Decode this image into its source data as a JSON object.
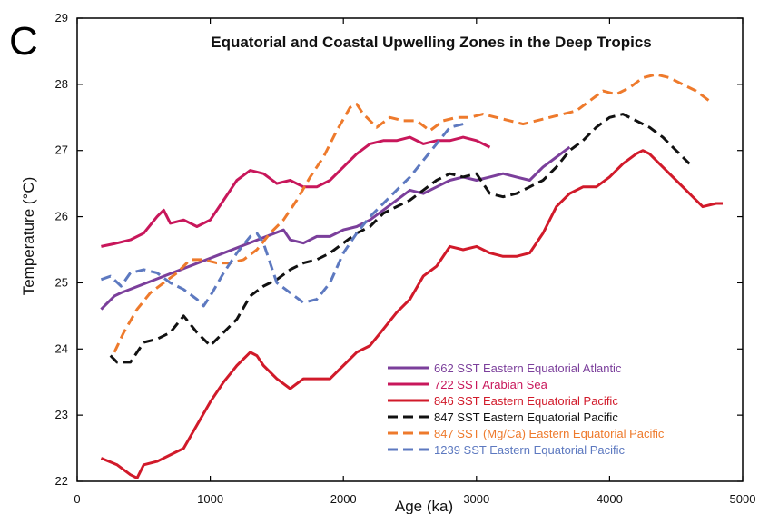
{
  "chart_data": {
    "type": "line",
    "panel_label": "C",
    "title": "Equatorial and Coastal Upwelling Zones in the Deep Tropics",
    "xlabel": "Age (ka)",
    "ylabel": "Temperature (°C)",
    "xlim": [
      0,
      5000
    ],
    "ylim": [
      22,
      29
    ],
    "x_ticks": [
      0,
      1000,
      2000,
      3000,
      4000,
      5000
    ],
    "y_ticks": [
      22,
      23,
      24,
      25,
      26,
      27,
      28,
      29
    ],
    "grid": false,
    "legend_position": "bottom-right",
    "series": [
      {
        "name": "662 SST Eastern Equatorial Atlantic",
        "color": "#7b3f9b",
        "dash": "solid",
        "x": [
          180,
          230,
          280,
          330,
          1550,
          1600,
          1700,
          1800,
          1900,
          2000,
          2100,
          2200,
          2300,
          2400,
          2500,
          2600,
          2700,
          2800,
          2900,
          3000,
          3100,
          3200,
          3300,
          3400,
          3500,
          3600,
          3700
        ],
        "y": [
          24.6,
          24.7,
          24.8,
          24.85,
          25.8,
          25.65,
          25.6,
          25.7,
          25.7,
          25.8,
          25.85,
          25.95,
          26.1,
          26.25,
          26.4,
          26.35,
          26.45,
          26.55,
          26.6,
          26.55,
          26.6,
          26.65,
          26.6,
          26.55,
          26.75,
          26.9,
          27.05
        ]
      },
      {
        "name": "722 SST Arabian Sea",
        "color": "#c8175b",
        "dash": "solid",
        "x": [
          180,
          300,
          400,
          500,
          600,
          650,
          700,
          800,
          900,
          1000,
          1100,
          1200,
          1300,
          1400,
          1500,
          1600,
          1700,
          1800,
          1900,
          2000,
          2100,
          2200,
          2300,
          2400,
          2500,
          2600,
          2700,
          2800,
          2900,
          3000,
          3100
        ],
        "y": [
          25.55,
          25.6,
          25.65,
          25.75,
          26.0,
          26.1,
          25.9,
          25.95,
          25.85,
          25.95,
          26.25,
          26.55,
          26.7,
          26.65,
          26.5,
          26.55,
          26.45,
          26.45,
          26.55,
          26.75,
          26.95,
          27.1,
          27.15,
          27.15,
          27.2,
          27.1,
          27.15,
          27.15,
          27.2,
          27.15,
          27.05
        ]
      },
      {
        "name": "846 SST Eastern Equatorial Pacific",
        "color": "#d11a2a",
        "dash": "solid",
        "x": [
          180,
          300,
          400,
          450,
          500,
          600,
          700,
          800,
          900,
          1000,
          1100,
          1200,
          1300,
          1350,
          1400,
          1500,
          1600,
          1700,
          1800,
          1900,
          2000,
          2100,
          2200,
          2300,
          2400,
          2500,
          2600,
          2700,
          2800,
          2900,
          3000,
          3100,
          3200,
          3300,
          3400,
          3500,
          3600,
          3700,
          3800,
          3900,
          4000,
          4100,
          4200,
          4250,
          4300,
          4400,
          4500,
          4600,
          4700,
          4800,
          4850
        ],
        "y": [
          22.35,
          22.25,
          22.1,
          22.05,
          22.25,
          22.3,
          22.4,
          22.5,
          22.85,
          23.2,
          23.5,
          23.75,
          23.95,
          23.9,
          23.75,
          23.55,
          23.4,
          23.55,
          23.55,
          23.55,
          23.75,
          23.95,
          24.05,
          24.3,
          24.55,
          24.75,
          25.1,
          25.25,
          25.55,
          25.5,
          25.55,
          25.45,
          25.4,
          25.4,
          25.45,
          25.75,
          26.15,
          26.35,
          26.45,
          26.45,
          26.6,
          26.8,
          26.95,
          27.0,
          26.95,
          26.75,
          26.55,
          26.35,
          26.15,
          26.2,
          26.2
        ]
      },
      {
        "name": "847 SST Eastern Equatorial Pacific",
        "color": "#111111",
        "dash": "dashed",
        "x": [
          250,
          300,
          400,
          500,
          600,
          700,
          800,
          900,
          1000,
          1100,
          1200,
          1300,
          1400,
          1500,
          1600,
          1700,
          1800,
          1900,
          2000,
          2100,
          2200,
          2300,
          2400,
          2500,
          2600,
          2700,
          2800,
          2900,
          3000,
          3100,
          3200,
          3300,
          3400,
          3500,
          3600,
          3700,
          3800,
          3900,
          4000,
          4100,
          4200,
          4300,
          4400,
          4500,
          4600
        ],
        "y": [
          23.9,
          23.8,
          23.8,
          24.1,
          24.15,
          24.25,
          24.5,
          24.25,
          24.05,
          24.25,
          24.45,
          24.8,
          24.95,
          25.05,
          25.2,
          25.3,
          25.35,
          25.45,
          25.6,
          25.75,
          25.85,
          26.05,
          26.15,
          26.25,
          26.4,
          26.55,
          26.65,
          26.6,
          26.65,
          26.35,
          26.3,
          26.35,
          26.45,
          26.55,
          26.75,
          27.0,
          27.15,
          27.35,
          27.5,
          27.55,
          27.45,
          27.35,
          27.2,
          27.0,
          26.8
        ]
      },
      {
        "name": "847 SST (Mg/Ca) Eastern Equatorial Pacific",
        "color": "#ee7a2c",
        "dash": "dashed",
        "x": [
          280,
          350,
          450,
          550,
          650,
          750,
          850,
          950,
          1050,
          1150,
          1250,
          1350,
          1450,
          1550,
          1650,
          1750,
          1850,
          1950,
          2050,
          2100,
          2150,
          2250,
          2350,
          2450,
          2550,
          2650,
          2750,
          2850,
          2950,
          3050,
          3150,
          3250,
          3350,
          3450,
          3550,
          3650,
          3750,
          3850,
          3950,
          4050,
          4150,
          4250,
          4350,
          4450,
          4550,
          4650,
          4750
        ],
        "y": [
          23.95,
          24.25,
          24.6,
          24.85,
          25.0,
          25.15,
          25.35,
          25.35,
          25.3,
          25.3,
          25.35,
          25.5,
          25.75,
          25.95,
          26.25,
          26.6,
          26.9,
          27.3,
          27.65,
          27.7,
          27.55,
          27.35,
          27.5,
          27.45,
          27.45,
          27.3,
          27.45,
          27.5,
          27.5,
          27.55,
          27.5,
          27.45,
          27.4,
          27.45,
          27.5,
          27.55,
          27.6,
          27.75,
          27.9,
          27.85,
          27.95,
          28.1,
          28.15,
          28.1,
          28.0,
          27.9,
          27.75
        ]
      },
      {
        "name": "1239 SST Eastern Equatorial Pacific",
        "color": "#5d79c0",
        "dash": "dashed",
        "x": [
          180,
          250,
          330,
          400,
          500,
          600,
          700,
          800,
          900,
          950,
          1000,
          1100,
          1200,
          1300,
          1350,
          1400,
          1500,
          1600,
          1700,
          1800,
          1900,
          2000,
          2100,
          2200,
          2300,
          2400,
          2500,
          2600,
          2700,
          2800,
          2900
        ],
        "y": [
          25.05,
          25.1,
          24.95,
          25.15,
          25.2,
          25.15,
          25.0,
          24.9,
          24.75,
          24.65,
          24.8,
          25.15,
          25.45,
          25.7,
          25.75,
          25.6,
          25.0,
          24.85,
          24.7,
          24.75,
          25.0,
          25.45,
          25.75,
          26.0,
          26.2,
          26.4,
          26.6,
          26.85,
          27.1,
          27.35,
          27.4
        ]
      }
    ]
  }
}
